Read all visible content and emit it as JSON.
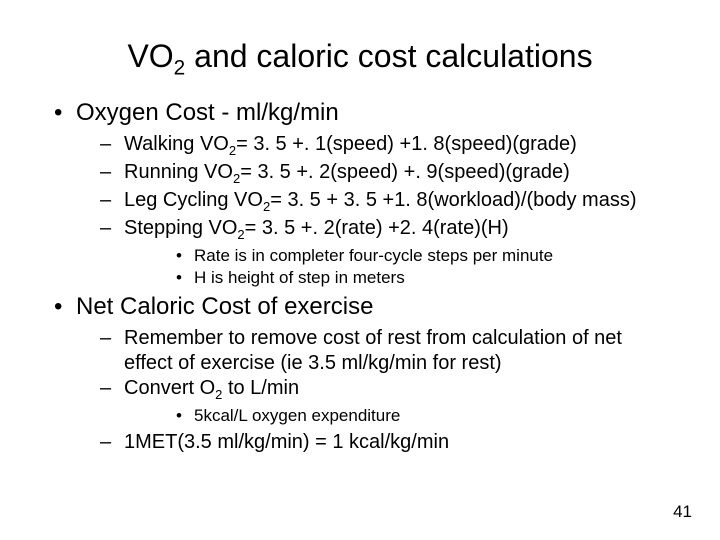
{
  "title_pre": "VO",
  "title_sub": "2",
  "title_post": " and caloric cost calculations",
  "section1": {
    "heading": "Oxygen Cost - ml/kg/min",
    "items": [
      {
        "pre": "Walking VO",
        "sub": "2",
        "post": "= 3. 5 +. 1(speed) +1. 8(speed)(grade)"
      },
      {
        "pre": "Running VO",
        "sub": "2",
        "post": "= 3. 5 +. 2(speed) +. 9(speed)(grade)"
      },
      {
        "pre": "Leg Cycling VO",
        "sub": "2",
        "post": "= 3. 5 + 3. 5 +1. 8(workload)/(body mass)"
      },
      {
        "pre": "Stepping VO",
        "sub": "2",
        "post": "= 3. 5 +. 2(rate) +2. 4(rate)(H)"
      }
    ],
    "notes": [
      "Rate is in completer four-cycle steps per minute",
      "H is height of step in meters"
    ]
  },
  "section2": {
    "heading": "Net Caloric Cost of exercise",
    "items": [
      "Remember to remove cost of rest from calculation of net effect of exercise (ie 3.5 ml/kg/min for rest)"
    ],
    "convert_pre": "Convert O",
    "convert_sub": "2",
    "convert_post": " to L/min",
    "subnotes": [
      "5kcal/L oxygen expenditure"
    ],
    "final": "1MET(3.5 ml/kg/min) = 1 kcal/kg/min"
  },
  "page_number": "41"
}
